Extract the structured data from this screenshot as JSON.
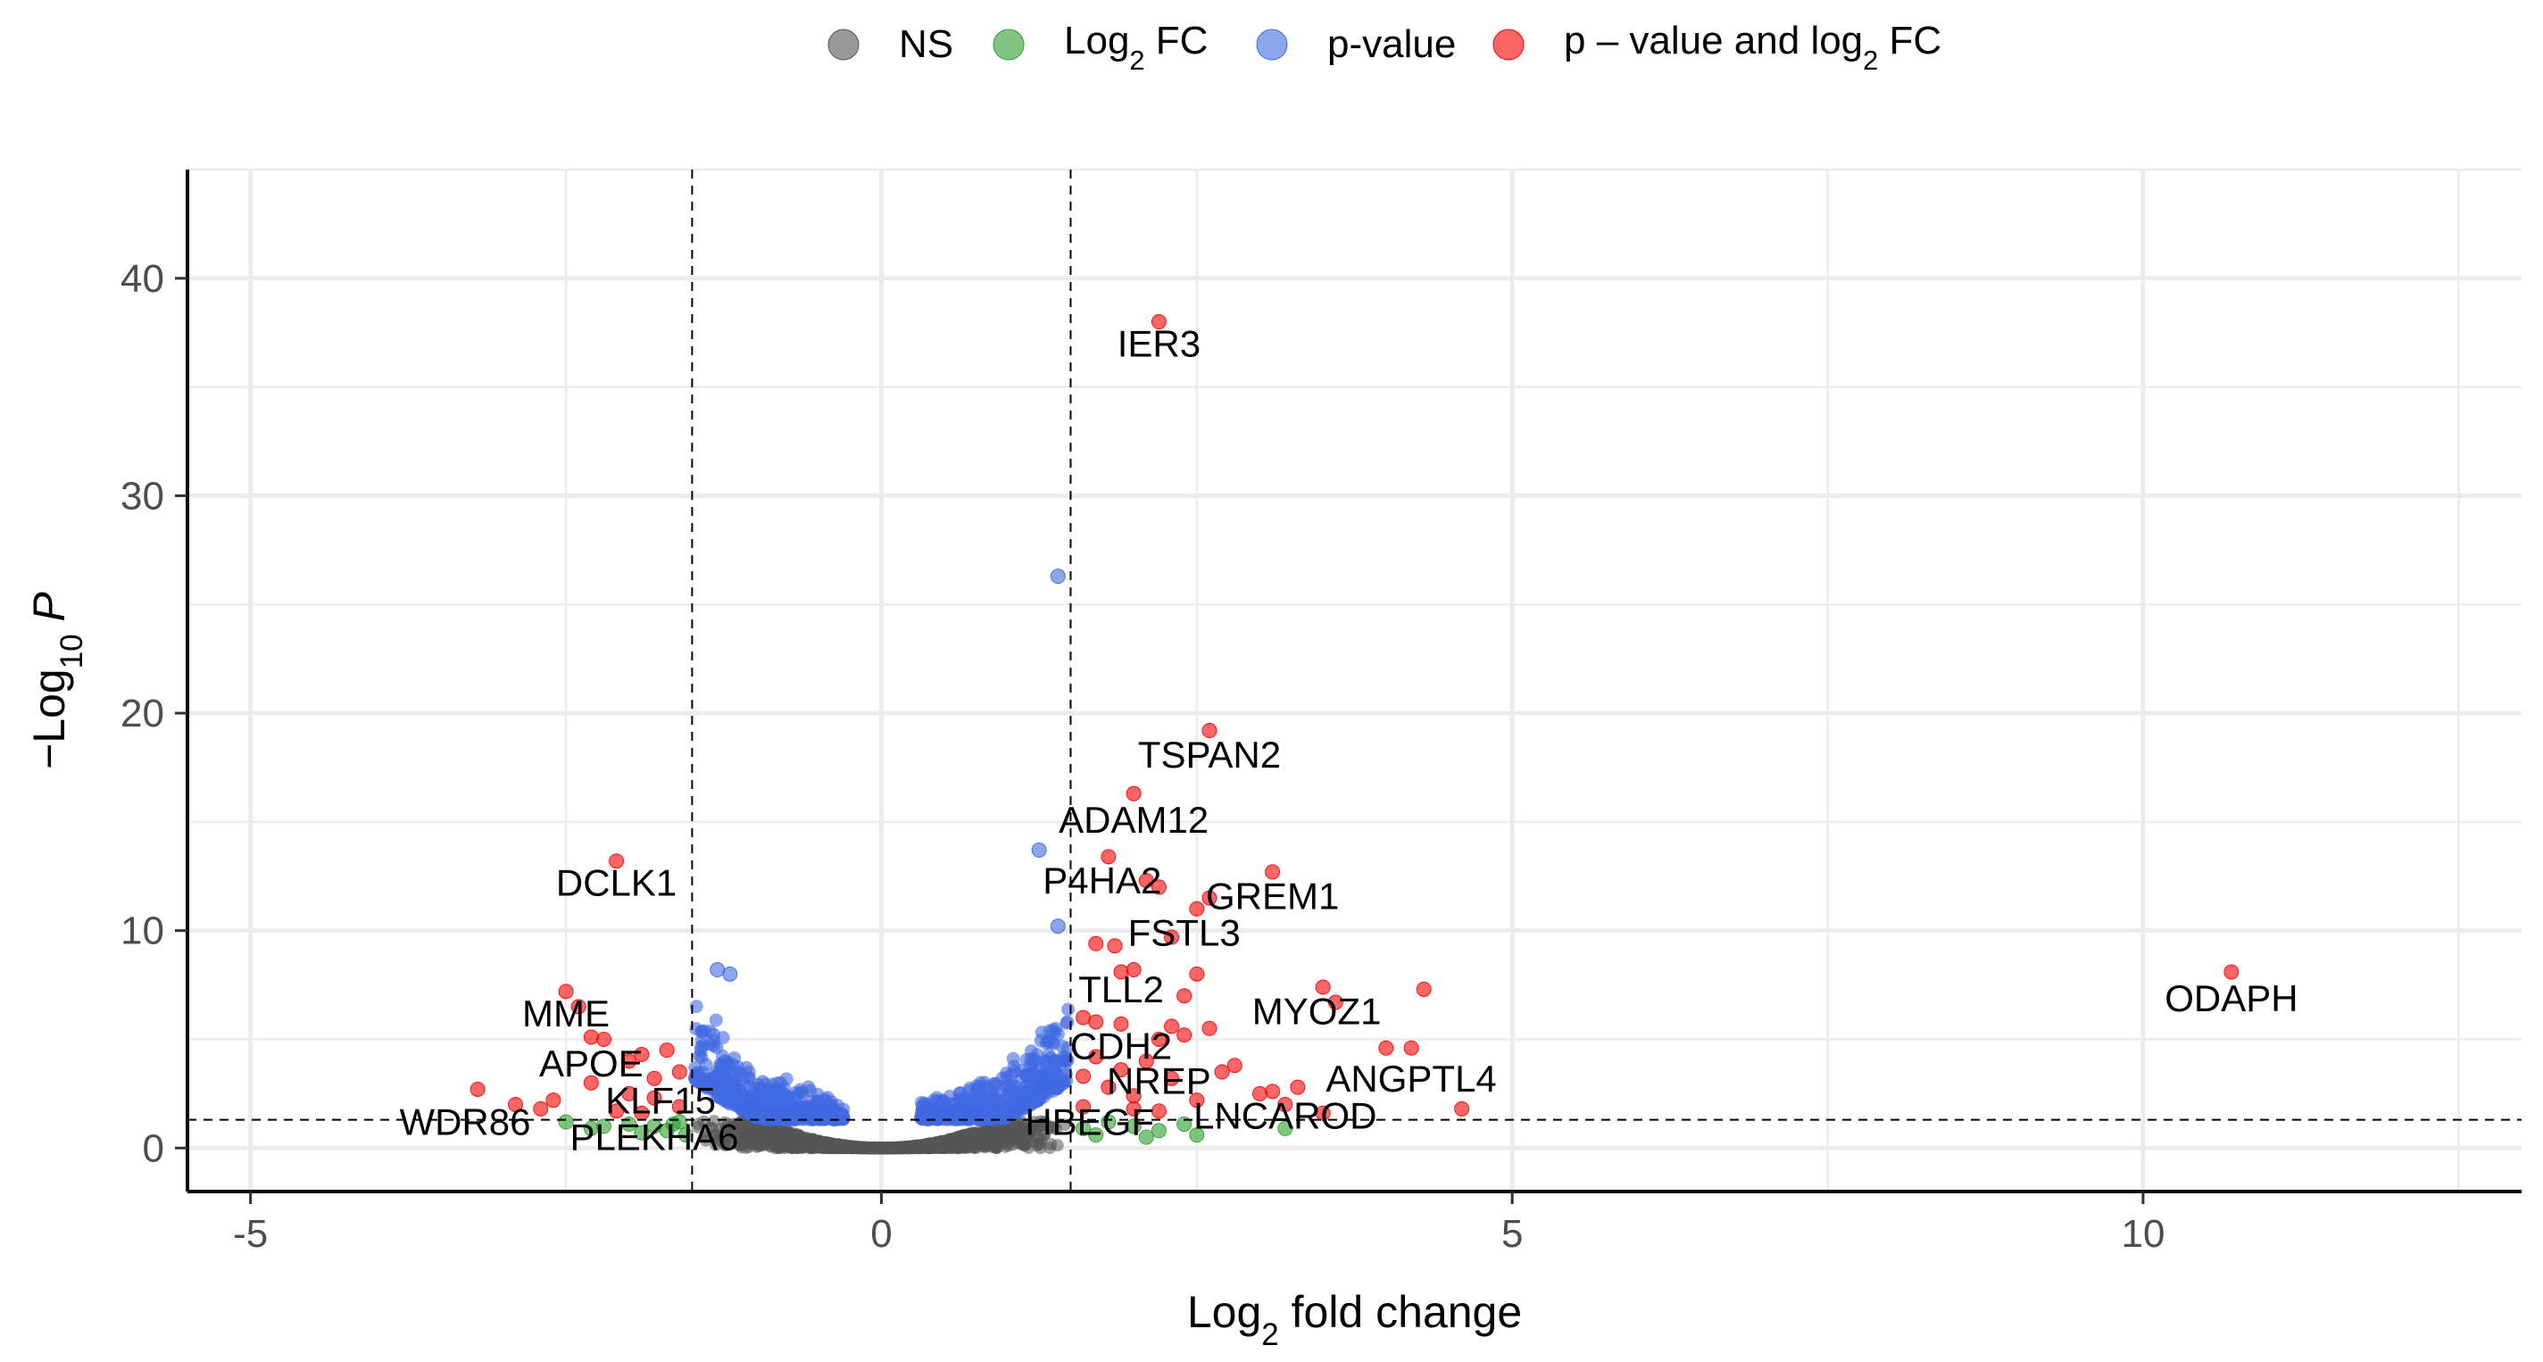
{
  "chart_data": {
    "type": "scatter",
    "title": "",
    "xlabel": {
      "base": "Log",
      "sub": "2",
      "rest": " fold change"
    },
    "ylabel": {
      "base": "−Log",
      "sub": "10",
      "rest": " P"
    },
    "xlim": [
      -5.5,
      13
    ],
    "ylim": [
      -2,
      45
    ],
    "xticks": [
      -5,
      0,
      5,
      10
    ],
    "yticks": [
      0,
      10,
      20,
      30,
      40
    ],
    "grid": true,
    "fc_cutoff": 1.5,
    "p_cutoff": 1.3,
    "legend": {
      "position": "top",
      "items": [
        {
          "key": "ns",
          "label": "NS",
          "color": "#555555"
        },
        {
          "key": "fc",
          "label_base": "Log",
          "label_sub": "2",
          "label_rest": " FC",
          "color": "#2ca02c"
        },
        {
          "key": "p",
          "label": "p-value",
          "color": "#4169e1"
        },
        {
          "key": "both",
          "label_base": "p – value and log",
          "label_sub": "2",
          "label_rest": " FC",
          "color": "#ff0000"
        }
      ]
    },
    "highlighted_points": [
      {
        "x": 2.2,
        "y": 38.0,
        "category": "both"
      },
      {
        "x": 1.4,
        "y": 26.3,
        "category": "p"
      },
      {
        "x": 2.6,
        "y": 19.2,
        "category": "both"
      },
      {
        "x": 2.0,
        "y": 16.3,
        "category": "both"
      },
      {
        "x": 1.25,
        "y": 13.7,
        "category": "p"
      },
      {
        "x": 1.8,
        "y": 13.4,
        "category": "both"
      },
      {
        "x": -2.1,
        "y": 13.2,
        "category": "both"
      },
      {
        "x": 3.1,
        "y": 12.7,
        "category": "both"
      },
      {
        "x": 2.1,
        "y": 12.3,
        "category": "both"
      },
      {
        "x": 2.2,
        "y": 12.0,
        "category": "both"
      },
      {
        "x": 2.6,
        "y": 11.5,
        "category": "both"
      },
      {
        "x": 2.5,
        "y": 11.0,
        "category": "both"
      },
      {
        "x": 1.4,
        "y": 10.2,
        "category": "p"
      },
      {
        "x": 2.3,
        "y": 9.7,
        "category": "both"
      },
      {
        "x": 1.7,
        "y": 9.4,
        "category": "both"
      },
      {
        "x": 1.85,
        "y": 9.3,
        "category": "both"
      },
      {
        "x": 2.0,
        "y": 8.2,
        "category": "both"
      },
      {
        "x": 1.9,
        "y": 8.1,
        "category": "both"
      },
      {
        "x": 2.5,
        "y": 8.0,
        "category": "both"
      },
      {
        "x": 10.7,
        "y": 8.1,
        "category": "both"
      },
      {
        "x": -1.2,
        "y": 8.0,
        "category": "p"
      },
      {
        "x": -1.3,
        "y": 8.2,
        "category": "p"
      },
      {
        "x": 3.5,
        "y": 7.4,
        "category": "both"
      },
      {
        "x": 4.3,
        "y": 7.3,
        "category": "both"
      },
      {
        "x": -2.5,
        "y": 7.2,
        "category": "both"
      },
      {
        "x": 2.4,
        "y": 7.0,
        "category": "both"
      },
      {
        "x": 3.6,
        "y": 6.7,
        "category": "both"
      },
      {
        "x": -2.4,
        "y": 6.5,
        "category": "both"
      },
      {
        "x": 1.6,
        "y": 6.0,
        "category": "both"
      },
      {
        "x": 1.7,
        "y": 5.8,
        "category": "both"
      },
      {
        "x": 1.9,
        "y": 5.7,
        "category": "both"
      },
      {
        "x": 2.3,
        "y": 5.6,
        "category": "both"
      },
      {
        "x": 2.6,
        "y": 5.5,
        "category": "both"
      },
      {
        "x": 2.4,
        "y": 5.2,
        "category": "both"
      },
      {
        "x": 2.2,
        "y": 5.0,
        "category": "both"
      },
      {
        "x": -2.3,
        "y": 5.1,
        "category": "both"
      },
      {
        "x": -2.2,
        "y": 5.0,
        "category": "both"
      },
      {
        "x": 4.0,
        "y": 4.6,
        "category": "both"
      },
      {
        "x": 4.2,
        "y": 4.6,
        "category": "both"
      },
      {
        "x": -1.7,
        "y": 4.5,
        "category": "both"
      },
      {
        "x": -1.9,
        "y": 4.3,
        "category": "both"
      },
      {
        "x": 1.7,
        "y": 4.2,
        "category": "both"
      },
      {
        "x": 2.1,
        "y": 4.0,
        "category": "both"
      },
      {
        "x": 2.8,
        "y": 3.8,
        "category": "both"
      },
      {
        "x": -2.0,
        "y": 4.0,
        "category": "both"
      },
      {
        "x": 1.9,
        "y": 3.6,
        "category": "both"
      },
      {
        "x": 2.7,
        "y": 3.5,
        "category": "both"
      },
      {
        "x": 1.6,
        "y": 3.3,
        "category": "both"
      },
      {
        "x": 2.3,
        "y": 3.2,
        "category": "both"
      },
      {
        "x": -1.6,
        "y": 3.5,
        "category": "both"
      },
      {
        "x": -1.8,
        "y": 3.2,
        "category": "both"
      },
      {
        "x": -2.3,
        "y": 3.0,
        "category": "both"
      },
      {
        "x": 3.3,
        "y": 2.8,
        "category": "both"
      },
      {
        "x": 3.1,
        "y": 2.6,
        "category": "both"
      },
      {
        "x": 3.0,
        "y": 2.5,
        "category": "both"
      },
      {
        "x": -3.2,
        "y": 2.7,
        "category": "both"
      },
      {
        "x": 1.8,
        "y": 2.8,
        "category": "both"
      },
      {
        "x": 2.0,
        "y": 2.4,
        "category": "both"
      },
      {
        "x": 2.5,
        "y": 2.2,
        "category": "both"
      },
      {
        "x": -2.0,
        "y": 2.5,
        "category": "both"
      },
      {
        "x": -1.8,
        "y": 2.3,
        "category": "both"
      },
      {
        "x": -2.6,
        "y": 2.2,
        "category": "both"
      },
      {
        "x": 3.2,
        "y": 2.0,
        "category": "both"
      },
      {
        "x": 4.6,
        "y": 1.8,
        "category": "both"
      },
      {
        "x": 1.6,
        "y": 1.9,
        "category": "both"
      },
      {
        "x": 2.0,
        "y": 1.8,
        "category": "both"
      },
      {
        "x": 2.2,
        "y": 1.7,
        "category": "both"
      },
      {
        "x": 3.5,
        "y": 1.6,
        "category": "both"
      },
      {
        "x": -2.9,
        "y": 2.0,
        "category": "both"
      },
      {
        "x": -2.7,
        "y": 1.8,
        "category": "both"
      },
      {
        "x": -2.1,
        "y": 1.7,
        "category": "both"
      },
      {
        "x": -1.6,
        "y": 1.9,
        "category": "both"
      },
      {
        "x": -1.9,
        "y": 1.6,
        "category": "both"
      },
      {
        "x": -1.6,
        "y": 1.2,
        "category": "fc"
      },
      {
        "x": -1.8,
        "y": 1.0,
        "category": "fc"
      },
      {
        "x": -2.0,
        "y": 1.1,
        "category": "fc"
      },
      {
        "x": -2.3,
        "y": 0.9,
        "category": "fc"
      },
      {
        "x": -1.7,
        "y": 0.8,
        "category": "fc"
      },
      {
        "x": -2.5,
        "y": 1.2,
        "category": "fc"
      },
      {
        "x": -1.55,
        "y": 0.6,
        "category": "fc"
      },
      {
        "x": -1.9,
        "y": 0.7,
        "category": "fc"
      },
      {
        "x": -2.2,
        "y": 1.0,
        "category": "fc"
      },
      {
        "x": -1.65,
        "y": 1.1,
        "category": "fc"
      },
      {
        "x": 1.6,
        "y": 0.9,
        "category": "fc"
      },
      {
        "x": 1.7,
        "y": 0.6,
        "category": "fc"
      },
      {
        "x": 2.0,
        "y": 1.0,
        "category": "fc"
      },
      {
        "x": 2.2,
        "y": 0.8,
        "category": "fc"
      },
      {
        "x": 2.4,
        "y": 1.1,
        "category": "fc"
      },
      {
        "x": 2.5,
        "y": 0.6,
        "category": "fc"
      },
      {
        "x": 3.2,
        "y": 0.9,
        "category": "fc"
      },
      {
        "x": 1.8,
        "y": 1.2,
        "category": "fc"
      },
      {
        "x": 2.1,
        "y": 0.5,
        "category": "fc"
      }
    ],
    "labels": [
      {
        "text": "IER3",
        "x": 2.2,
        "y": 36.4,
        "anchor": "middle"
      },
      {
        "text": "TSPAN2",
        "x": 2.6,
        "y": 17.5,
        "anchor": "middle"
      },
      {
        "text": "ADAM12",
        "x": 2.0,
        "y": 14.5,
        "anchor": "middle"
      },
      {
        "text": "DCLK1",
        "x": -2.1,
        "y": 11.6,
        "anchor": "middle"
      },
      {
        "text": "P4HA2",
        "x": 1.75,
        "y": 11.7,
        "anchor": "middle"
      },
      {
        "text": "GREM1",
        "x": 3.1,
        "y": 11.0,
        "anchor": "middle"
      },
      {
        "text": "FSTL3",
        "x": 2.4,
        "y": 9.3,
        "anchor": "middle"
      },
      {
        "text": "ODAPH",
        "x": 10.7,
        "y": 6.3,
        "anchor": "middle"
      },
      {
        "text": "TLL2",
        "x": 1.9,
        "y": 6.7,
        "anchor": "middle"
      },
      {
        "text": "MYOZ1",
        "x": 3.45,
        "y": 5.7,
        "anchor": "middle"
      },
      {
        "text": "MME",
        "x": -2.5,
        "y": 5.6,
        "anchor": "middle"
      },
      {
        "text": "CDH2",
        "x": 1.9,
        "y": 4.1,
        "anchor": "middle"
      },
      {
        "text": "APOE",
        "x": -2.3,
        "y": 3.3,
        "anchor": "middle"
      },
      {
        "text": "NREP",
        "x": 2.2,
        "y": 2.5,
        "anchor": "middle"
      },
      {
        "text": "ANGPTL4",
        "x": 4.2,
        "y": 2.6,
        "anchor": "middle"
      },
      {
        "text": "KLF15",
        "x": -1.75,
        "y": 1.6,
        "anchor": "middle"
      },
      {
        "text": "HBEGF",
        "x": 1.65,
        "y": 0.6,
        "anchor": "middle"
      },
      {
        "text": "LNCAROD",
        "x": 3.2,
        "y": 0.9,
        "anchor": "middle"
      },
      {
        "text": "WDR86",
        "x": -3.3,
        "y": 0.6,
        "anchor": "middle"
      },
      {
        "text": "PLEKHA6",
        "x": -1.8,
        "y": -0.1,
        "anchor": "middle"
      }
    ]
  }
}
